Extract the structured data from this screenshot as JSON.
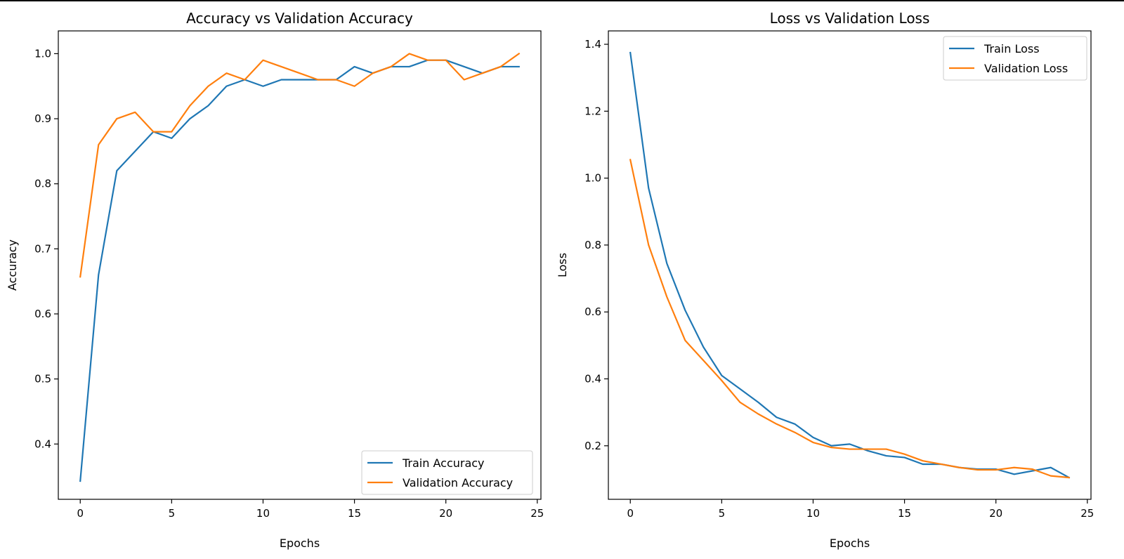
{
  "chart_data": [
    {
      "type": "line",
      "title": "Accuracy vs Validation Accuracy",
      "xlabel": "Epochs",
      "ylabel": "Accuracy",
      "xlim": [
        -1.2,
        25.2
      ],
      "ylim": [
        0.315,
        1.035
      ],
      "xticks": [
        0,
        5,
        10,
        15,
        20,
        25
      ],
      "yticks": [
        0.4,
        0.5,
        0.6,
        0.7,
        0.8,
        0.9,
        1.0
      ],
      "xtick_labels": [
        "0",
        "5",
        "10",
        "15",
        "20",
        "25"
      ],
      "ytick_labels": [
        "0.4",
        "0.5",
        "0.6",
        "0.7",
        "0.8",
        "0.9",
        "1.0"
      ],
      "legend_position": "lower-right",
      "grid": false,
      "x": [
        0,
        1,
        2,
        3,
        4,
        5,
        6,
        7,
        8,
        9,
        10,
        11,
        12,
        13,
        14,
        15,
        16,
        17,
        18,
        19,
        20,
        21,
        22,
        23,
        24
      ],
      "series": [
        {
          "name": "Train Accuracy",
          "color": "#1f77b4",
          "values": [
            0.343,
            0.66,
            0.82,
            0.85,
            0.88,
            0.87,
            0.9,
            0.92,
            0.95,
            0.96,
            0.95,
            0.96,
            0.96,
            0.96,
            0.96,
            0.98,
            0.97,
            0.98,
            0.98,
            0.99,
            0.99,
            0.98,
            0.97,
            0.98,
            0.98
          ]
        },
        {
          "name": "Validation Accuracy",
          "color": "#ff7f0e",
          "values": [
            0.657,
            0.86,
            0.9,
            0.91,
            0.88,
            0.88,
            0.92,
            0.95,
            0.97,
            0.96,
            0.99,
            0.98,
            0.97,
            0.96,
            0.96,
            0.95,
            0.97,
            0.98,
            1.0,
            0.99,
            0.99,
            0.96,
            0.97,
            0.98,
            1.0
          ]
        }
      ]
    },
    {
      "type": "line",
      "title": "Loss vs Validation Loss",
      "xlabel": "Epochs",
      "ylabel": "Loss",
      "xlim": [
        -1.2,
        25.2
      ],
      "ylim": [
        0.04,
        1.44
      ],
      "xticks": [
        0,
        5,
        10,
        15,
        20,
        25
      ],
      "yticks": [
        0.2,
        0.4,
        0.6,
        0.8,
        1.0,
        1.2,
        1.4
      ],
      "xtick_labels": [
        "0",
        "5",
        "10",
        "15",
        "20",
        "25"
      ],
      "ytick_labels": [
        "0.2",
        "0.4",
        "0.6",
        "0.8",
        "1.0",
        "1.2",
        "1.4"
      ],
      "legend_position": "upper-right",
      "grid": false,
      "x": [
        0,
        1,
        2,
        3,
        4,
        5,
        6,
        7,
        8,
        9,
        10,
        11,
        12,
        13,
        14,
        15,
        16,
        17,
        18,
        19,
        20,
        21,
        22,
        23,
        24
      ],
      "series": [
        {
          "name": "Train Loss",
          "color": "#1f77b4",
          "values": [
            1.375,
            0.97,
            0.745,
            0.605,
            0.495,
            0.41,
            0.37,
            0.33,
            0.285,
            0.265,
            0.225,
            0.2,
            0.205,
            0.185,
            0.17,
            0.165,
            0.145,
            0.145,
            0.135,
            0.13,
            0.13,
            0.115,
            0.125,
            0.135,
            0.105
          ]
        },
        {
          "name": "Validation Loss",
          "color": "#ff7f0e",
          "values": [
            1.055,
            0.8,
            0.645,
            0.515,
            0.455,
            0.395,
            0.33,
            0.295,
            0.265,
            0.24,
            0.21,
            0.195,
            0.19,
            0.19,
            0.19,
            0.175,
            0.155,
            0.145,
            0.135,
            0.128,
            0.128,
            0.135,
            0.13,
            0.11,
            0.105
          ]
        }
      ]
    }
  ]
}
